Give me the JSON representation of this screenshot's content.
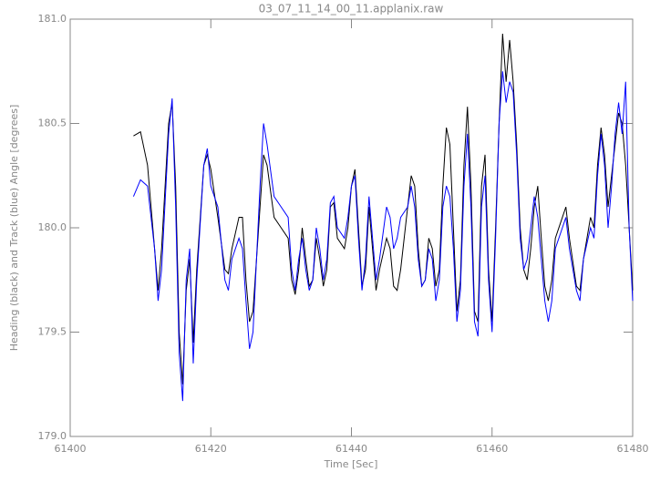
{
  "chart_data": {
    "type": "line",
    "title": "03_07_11_14_00_11.applanix.raw",
    "xlabel": "Time [Sec]",
    "ylabel": "Heading (black) and Track (blue) Angle [degrees]",
    "xlim": [
      61400,
      61480
    ],
    "xticks": [
      61400,
      61420,
      61440,
      61460,
      61480
    ],
    "ylim": [
      179,
      181
    ],
    "yticks": [
      {
        "value": 179,
        "label": "179.0"
      },
      179.5,
      {
        "value": 180,
        "label": "180.0"
      },
      180.5,
      {
        "value": 181,
        "label": "181.0"
      }
    ],
    "grid": false,
    "x": [
      61409,
      61410,
      61411,
      61412,
      61412.5,
      61413,
      61414,
      61414.5,
      61415,
      61415.5,
      61416,
      61416.5,
      61417,
      61417.5,
      61418,
      61419,
      61419.5,
      61420,
      61421,
      61422,
      61422.5,
      61423,
      61424,
      61424.5,
      61425,
      61425.5,
      61426,
      61427,
      61427.5,
      61428,
      61429,
      61430,
      61431,
      61431.5,
      61432,
      61432.5,
      61433,
      61433.5,
      61434,
      61434.5,
      61435,
      61435.5,
      61436,
      61436.5,
      61437,
      61437.5,
      61438,
      61439,
      61439.5,
      61440,
      61440.5,
      61441,
      61441.5,
      61442,
      61442.5,
      61443,
      61443.5,
      61444,
      61445,
      61445.5,
      61446,
      61446.5,
      61447,
      61448,
      61448.5,
      61449,
      61449.5,
      61450,
      61450.5,
      61451,
      61451.5,
      61452,
      61452.5,
      61453,
      61453.5,
      61454,
      61454.5,
      61455,
      61455.5,
      61456,
      61456.5,
      61457,
      61457.5,
      61458,
      61458.5,
      61459,
      61459.5,
      61460,
      61460.5,
      61461,
      61461.5,
      61462,
      61462.5,
      61463,
      61463.5,
      61464,
      61464.5,
      61465,
      61465.5,
      61466,
      61466.5,
      61467,
      61467.5,
      61468,
      61468.5,
      61469,
      61470,
      61470.5,
      61471,
      61472,
      61472.5,
      61473,
      61474,
      61474.5,
      61475,
      61475.5,
      61476,
      61476.5,
      61477,
      61477.5,
      61478,
      61478.5,
      61479,
      61479.5,
      61480
    ],
    "series": [
      {
        "color": "#000000",
        "values": [
          180.44,
          180.46,
          180.3,
          179.9,
          179.7,
          179.9,
          180.5,
          180.6,
          180.2,
          179.5,
          179.25,
          179.7,
          179.85,
          179.45,
          179.8,
          180.3,
          180.35,
          180.28,
          180.05,
          179.8,
          179.78,
          179.9,
          180.05,
          180.05,
          179.75,
          179.55,
          179.6,
          180.1,
          180.35,
          180.3,
          180.05,
          180.0,
          179.95,
          179.75,
          179.68,
          179.8,
          180.0,
          179.85,
          179.72,
          179.75,
          179.95,
          179.85,
          179.72,
          179.8,
          180.1,
          180.12,
          179.95,
          179.9,
          180.0,
          180.2,
          180.28,
          180.0,
          179.72,
          179.8,
          180.1,
          179.9,
          179.7,
          179.8,
          179.95,
          179.9,
          179.72,
          179.7,
          179.8,
          180.1,
          180.25,
          180.2,
          179.9,
          179.72,
          179.75,
          179.95,
          179.9,
          179.72,
          179.8,
          180.2,
          180.48,
          180.4,
          180.0,
          179.6,
          179.75,
          180.3,
          180.58,
          180.2,
          179.6,
          179.55,
          180.2,
          180.35,
          179.8,
          179.55,
          180.0,
          180.5,
          180.93,
          180.7,
          180.9,
          180.7,
          180.4,
          180.0,
          179.8,
          179.75,
          179.9,
          180.1,
          180.2,
          179.95,
          179.72,
          179.65,
          179.75,
          179.95,
          180.05,
          180.1,
          179.95,
          179.72,
          179.7,
          179.85,
          180.05,
          180.0,
          180.3,
          180.48,
          180.35,
          180.1,
          180.25,
          180.4,
          180.55,
          180.5,
          180.3,
          180.0,
          179.7
        ]
      },
      {
        "color": "#0000ff",
        "values": [
          180.15,
          180.23,
          180.2,
          179.9,
          179.65,
          179.8,
          180.45,
          180.62,
          180.1,
          179.4,
          179.17,
          179.75,
          179.9,
          179.35,
          179.75,
          180.3,
          180.38,
          180.2,
          180.1,
          179.75,
          179.7,
          179.85,
          179.95,
          179.9,
          179.65,
          179.42,
          179.5,
          180.2,
          180.5,
          180.4,
          180.15,
          180.1,
          180.05,
          179.8,
          179.7,
          179.85,
          179.95,
          179.8,
          179.7,
          179.75,
          180.0,
          179.9,
          179.75,
          179.85,
          180.12,
          180.15,
          180.0,
          179.95,
          180.05,
          180.2,
          180.25,
          179.95,
          179.7,
          179.85,
          180.15,
          179.95,
          179.75,
          179.85,
          180.1,
          180.05,
          179.9,
          179.95,
          180.05,
          180.1,
          180.2,
          180.1,
          179.85,
          179.72,
          179.75,
          179.9,
          179.85,
          179.65,
          179.75,
          180.1,
          180.2,
          180.15,
          179.9,
          179.55,
          179.7,
          180.2,
          180.45,
          180.1,
          179.55,
          179.48,
          180.1,
          180.25,
          179.75,
          179.5,
          179.95,
          180.5,
          180.75,
          180.6,
          180.7,
          180.65,
          180.35,
          179.95,
          179.8,
          179.85,
          180.0,
          180.15,
          180.05,
          179.85,
          179.65,
          179.55,
          179.65,
          179.9,
          180.0,
          180.05,
          179.9,
          179.7,
          179.65,
          179.85,
          180.0,
          179.95,
          180.25,
          180.45,
          180.3,
          180.0,
          180.2,
          180.45,
          180.6,
          180.45,
          180.7,
          180.0,
          179.65
        ]
      }
    ]
  }
}
